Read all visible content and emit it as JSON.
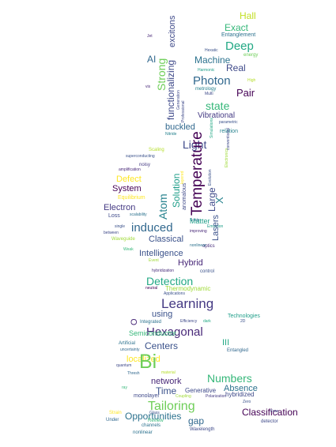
{
  "words": [
    {
      "text": "Hall",
      "color": "#c2df23"
    },
    {
      "text": "Exact",
      "color": "#35b779"
    },
    {
      "text": "Entanglement",
      "color": "#2c728e"
    },
    {
      "text": "Deep",
      "color": "#22a884"
    },
    {
      "text": "energy",
      "color": "#6ece58"
    },
    {
      "text": "Hexatic",
      "color": "#3b528b"
    },
    {
      "text": "Jet",
      "color": "#482878"
    },
    {
      "text": "AI",
      "color": "#31688e"
    },
    {
      "text": "Machine",
      "color": "#2c728e"
    },
    {
      "text": "Real",
      "color": "#3e4989"
    },
    {
      "text": "Harmonic",
      "color": "#1f9e89"
    },
    {
      "text": "Photon",
      "color": "#31688e"
    },
    {
      "text": "metrology",
      "color": "#26828e"
    },
    {
      "text": "High",
      "color": "#b5de2b"
    },
    {
      "text": "vis",
      "color": "#482878"
    },
    {
      "text": "Multi",
      "color": "#3e4989"
    },
    {
      "text": "Pair",
      "color": "#440154"
    },
    {
      "text": "state",
      "color": "#35b779"
    },
    {
      "text": "Vibrational",
      "color": "#443983"
    },
    {
      "text": "parametric",
      "color": "#3b528b"
    },
    {
      "text": "buckled",
      "color": "#31688e"
    },
    {
      "text": "relation",
      "color": "#26828e"
    },
    {
      "text": "Nitride",
      "color": "#26828e"
    },
    {
      "text": "Light",
      "color": "#3e4989"
    },
    {
      "text": "Scaling",
      "color": "#b5de2b"
    },
    {
      "text": "superconducting",
      "color": "#3b528b"
    },
    {
      "text": "noisy",
      "color": "#443983"
    },
    {
      "text": "amplification",
      "color": "#482878"
    },
    {
      "text": "Defect",
      "color": "#fde725"
    },
    {
      "text": "System",
      "color": "#440154"
    },
    {
      "text": "Equilibrium",
      "color": "#fde725"
    },
    {
      "text": "Electron",
      "color": "#443983"
    },
    {
      "text": "Loss",
      "color": "#3e4989"
    },
    {
      "text": "scalability",
      "color": "#2c728e"
    },
    {
      "text": "single",
      "color": "#3b528b"
    },
    {
      "text": "between",
      "color": "#3e4989"
    },
    {
      "text": "Waveguide",
      "color": "#a0da39"
    },
    {
      "text": "induced",
      "color": "#31688e"
    },
    {
      "text": "Scale",
      "color": "#31688e"
    },
    {
      "text": "Matter",
      "color": "#1f9e89"
    },
    {
      "text": "Emission",
      "color": "#1f9e89"
    },
    {
      "text": "improving",
      "color": "#482878"
    },
    {
      "text": "optics",
      "color": "#472d7b"
    },
    {
      "text": "Classical",
      "color": "#3b528b"
    },
    {
      "text": "Weak",
      "color": "#35b779"
    },
    {
      "text": "nonlinear",
      "color": "#2c728e"
    },
    {
      "text": "Intelligence",
      "color": "#3b528b"
    },
    {
      "text": "Event",
      "color": "#a0da39"
    },
    {
      "text": "Hybrid",
      "color": "#482878"
    },
    {
      "text": "hybridization",
      "color": "#472d7b"
    },
    {
      "text": "control",
      "color": "#3b528b"
    },
    {
      "text": "Detection",
      "color": "#22a884"
    },
    {
      "text": "Thermodynamic",
      "color": "#a0da39"
    },
    {
      "text": "neutral",
      "color": "#440154"
    },
    {
      "text": "Applications",
      "color": "#3b528b"
    },
    {
      "text": "Learning",
      "color": "#443983"
    },
    {
      "text": "using",
      "color": "#31688e"
    },
    {
      "text": "Technologies",
      "color": "#3b528b"
    },
    {
      "text": "Integrated",
      "color": "#1f9e89"
    },
    {
      "text": "Efficiency",
      "color": "#2c728e"
    },
    {
      "text": "dark",
      "color": "#3e4989"
    },
    {
      "text": "2D",
      "color": "#22a884"
    },
    {
      "text": "Hexagonal",
      "color": "#3b528b"
    },
    {
      "text": "Semiconductor",
      "color": "#482878"
    },
    {
      "text": "III",
      "color": "#35b779"
    },
    {
      "text": "Artificial",
      "color": "#22a884"
    },
    {
      "text": "Centers",
      "color": "#2c728e"
    },
    {
      "text": "Entangled",
      "color": "#3b528b"
    },
    {
      "text": "uncertainty",
      "color": "#31688e"
    },
    {
      "text": "localized",
      "color": "#31688e"
    },
    {
      "text": "Bi",
      "color": "#fde725"
    },
    {
      "text": "quantum",
      "color": "#6ece58"
    },
    {
      "text": "Thresh",
      "color": "#3e4989"
    },
    {
      "text": "material",
      "color": "#31688e"
    },
    {
      "text": "Numbers",
      "color": "#b5de2b"
    },
    {
      "text": "network",
      "color": "#35b779"
    },
    {
      "text": "monolayer",
      "color": "#482878"
    },
    {
      "text": "Time",
      "color": "#3e4989"
    },
    {
      "text": "ray",
      "color": "#3b528b"
    },
    {
      "text": "Generative",
      "color": "#35b779"
    },
    {
      "text": "Absence",
      "color": "#3e4989"
    },
    {
      "text": "Coupling",
      "color": "#2c728e"
    },
    {
      "text": "Polarization",
      "color": "#a0da39"
    },
    {
      "text": "hybridized",
      "color": "#443983"
    },
    {
      "text": "Zero",
      "color": "#3e4989"
    },
    {
      "text": "Tailoring",
      "color": "#3b528b"
    },
    {
      "text": "Classification",
      "color": "#6ece58"
    },
    {
      "text": "Free",
      "color": "#440154"
    },
    {
      "text": "Strain",
      "color": "#3e4989"
    },
    {
      "text": "Glass",
      "color": "#fde725"
    },
    {
      "text": "Opportunities",
      "color": "#3b528b"
    },
    {
      "text": "gap",
      "color": "#2c728e"
    },
    {
      "text": "Under",
      "color": "#31688e"
    },
    {
      "text": "Review",
      "color": "#31688e"
    },
    {
      "text": "detector",
      "color": "#35b779"
    },
    {
      "text": "channels",
      "color": "#3e4989"
    },
    {
      "text": "Wavelength",
      "color": "#2c728e"
    },
    {
      "text": "excitons",
      "color": "#3e4989"
    },
    {
      "text": "Strong",
      "color": "#3e4989"
    },
    {
      "text": "functionalizing",
      "color": "#6ece58"
    },
    {
      "text": "Generation",
      "color": "#3e4989"
    },
    {
      "text": "Professional",
      "color": "#3e4989"
    },
    {
      "text": "Simulations",
      "color": "#3e4989"
    },
    {
      "text": "Electronics",
      "color": "#22a884"
    },
    {
      "text": "Evolution",
      "color": "#a0da39"
    },
    {
      "text": "conventional",
      "color": "#3b528b"
    },
    {
      "text": "layered",
      "color": "#3e4989"
    },
    {
      "text": "Atom",
      "color": "#fde725"
    },
    {
      "text": "Solution",
      "color": "#26828e"
    },
    {
      "text": "anomalous",
      "color": "#1f9e89"
    },
    {
      "text": "Temperature",
      "color": "#3e4989"
    },
    {
      "text": "Large",
      "color": "#440154"
    },
    {
      "text": "X",
      "color": "#3e4989"
    },
    {
      "text": "Lasers",
      "color": "#26828e"
    },
    {
      "text": "O",
      "color": "#3b528b"
    },
    {
      "text": "Polaritonic",
      "color": "#482878"
    }
  ]
}
